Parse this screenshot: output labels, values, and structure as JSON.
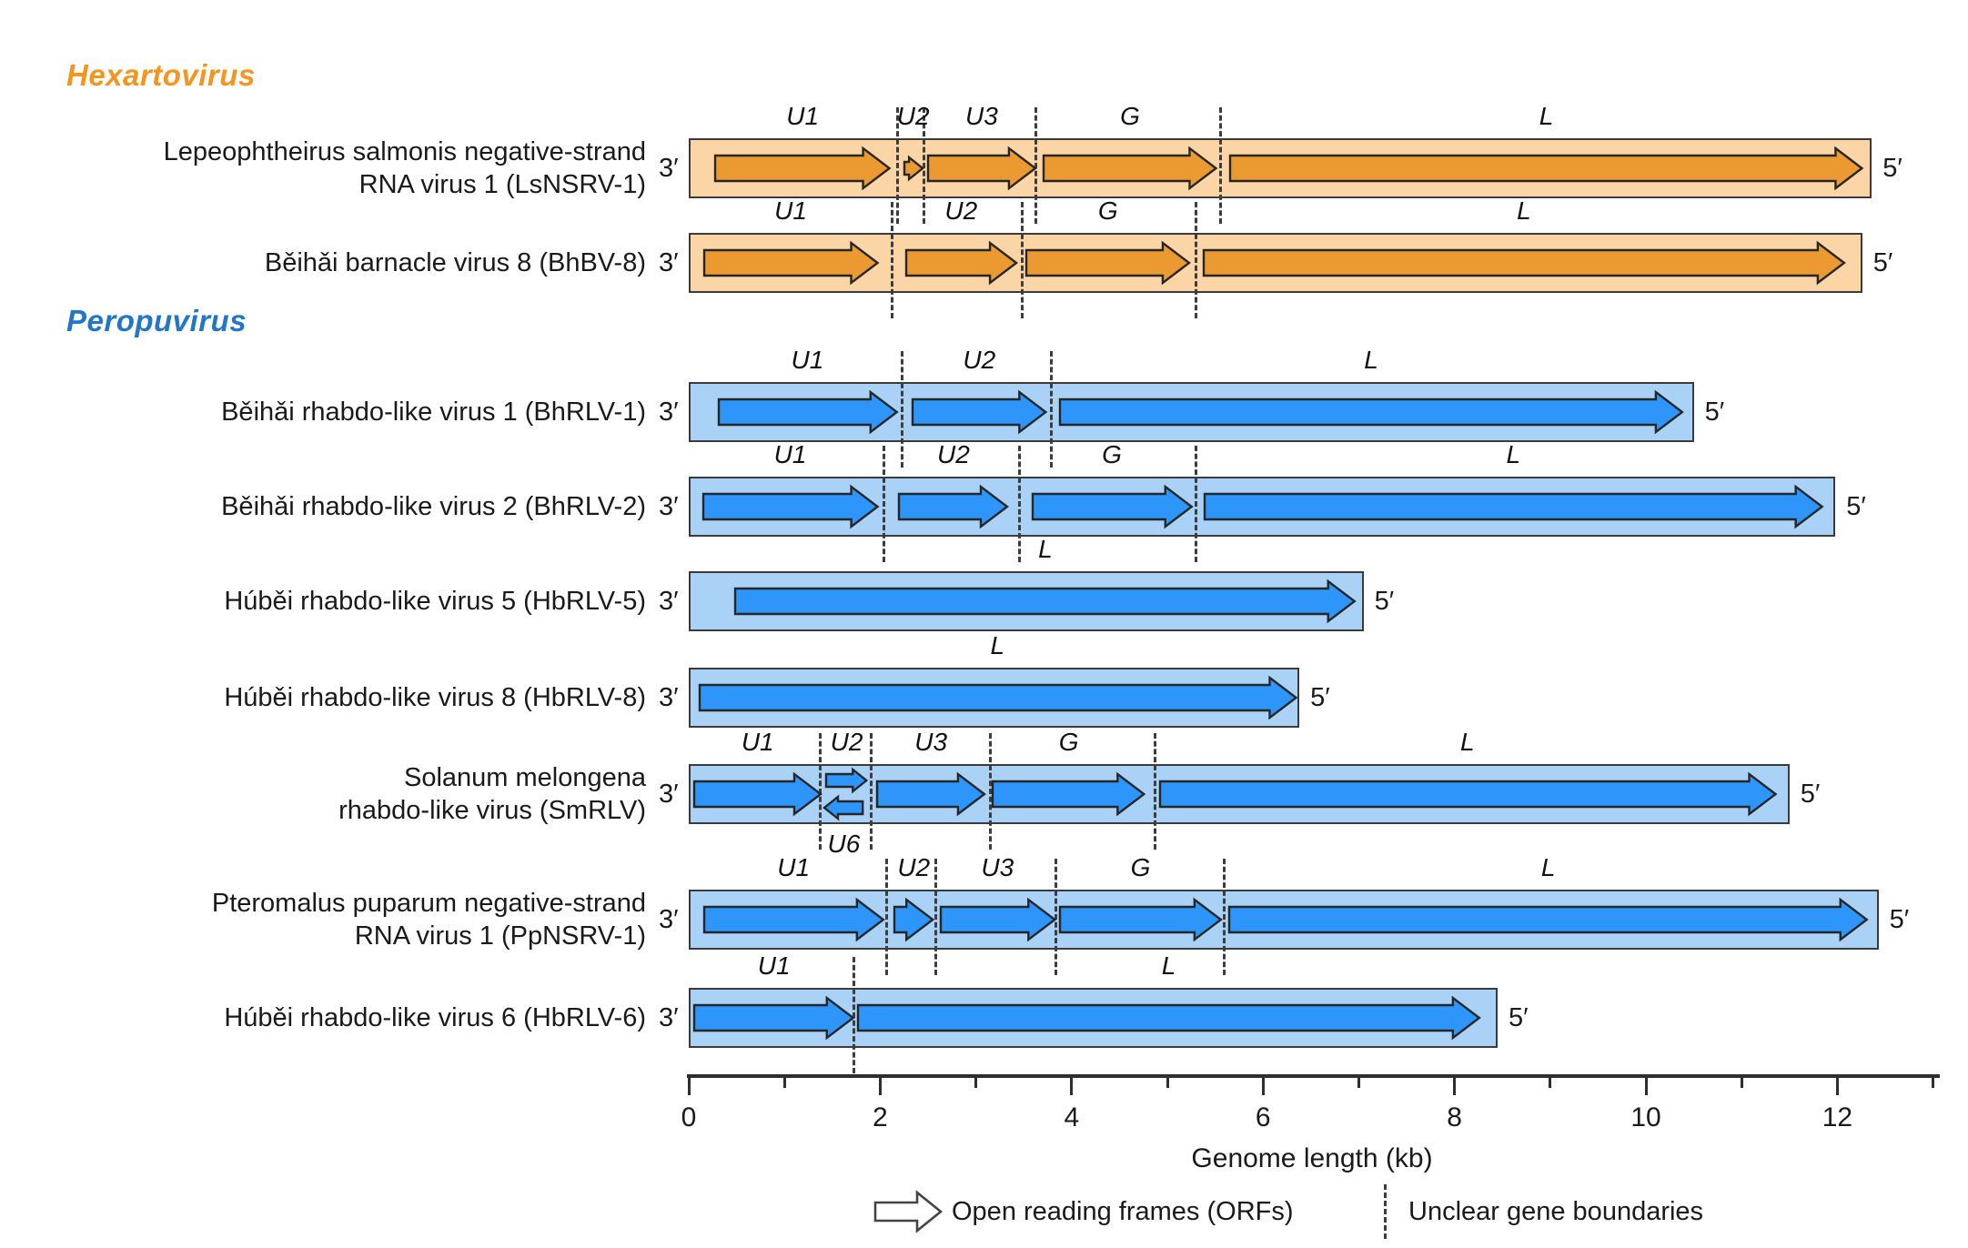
{
  "groups": [
    {
      "id": "hexartovirus",
      "label": "Hexartovirus",
      "header_color": "#F7941D",
      "band_color": "#FBD5A5",
      "arrow_color": "#EA9A31"
    },
    {
      "id": "peropuvirus",
      "label": "Peropuvirus",
      "header_color": "#2176C7",
      "band_color": "#A9D2F6",
      "arrow_color": "#2E96FA"
    }
  ],
  "prime_left": "3′",
  "prime_right": "5′",
  "rows": [
    {
      "id": "LsNSRV-1",
      "group": "hexartovirus",
      "name_lines": [
        "Lepeophtheirus salmonis negative-strand",
        "RNA virus 1 (LsNSRV-1)"
      ],
      "backbone_kb": 12.36,
      "orfs": [
        {
          "label": "U1",
          "start": 0.27,
          "end": 2.11,
          "size": "full",
          "lane": "center",
          "dir": "right"
        },
        {
          "label": "U2",
          "start": 2.24,
          "end": 2.45,
          "size": "small",
          "lane": "center",
          "dir": "right"
        },
        {
          "label": "U3",
          "start": 2.49,
          "end": 3.63,
          "size": "full",
          "lane": "center",
          "dir": "right"
        },
        {
          "label": "G",
          "start": 3.7,
          "end": 5.52,
          "size": "full",
          "lane": "center",
          "dir": "right"
        },
        {
          "label": "L",
          "start": 5.65,
          "end": 12.27,
          "size": "full",
          "lane": "center",
          "dir": "right"
        }
      ],
      "boundaries": [
        2.18,
        2.46,
        3.63,
        5.56
      ]
    },
    {
      "id": "BhBV-8",
      "group": "hexartovirus",
      "name_lines": [
        "Běihǎi barnacle virus 8 (BhBV-8)"
      ],
      "backbone_kb": 12.26,
      "orfs": [
        {
          "label": "U1",
          "start": 0.15,
          "end": 1.98,
          "size": "full",
          "lane": "center",
          "dir": "right"
        },
        {
          "label": "U2",
          "start": 2.26,
          "end": 3.43,
          "size": "full",
          "lane": "center",
          "dir": "right"
        },
        {
          "label": "G",
          "start": 3.52,
          "end": 5.24,
          "size": "full",
          "lane": "center",
          "dir": "right"
        },
        {
          "label": "L",
          "start": 5.37,
          "end": 12.08,
          "size": "full",
          "lane": "center",
          "dir": "right"
        }
      ],
      "boundaries": [
        2.12,
        3.48,
        5.3
      ]
    },
    {
      "id": "BhRLV-1",
      "group": "peropuvirus",
      "name_lines": [
        "Běihǎi rhabdo-like virus 1 (BhRLV-1)"
      ],
      "backbone_kb": 10.5,
      "orfs": [
        {
          "label": "U1",
          "start": 0.3,
          "end": 2.18,
          "size": "full",
          "lane": "center",
          "dir": "right"
        },
        {
          "label": "U2",
          "start": 2.33,
          "end": 3.74,
          "size": "full",
          "lane": "center",
          "dir": "right"
        },
        {
          "label": "L",
          "start": 3.87,
          "end": 10.39,
          "size": "full",
          "lane": "center",
          "dir": "right"
        }
      ],
      "boundaries": [
        2.23,
        3.79
      ]
    },
    {
      "id": "BhRLV-2",
      "group": "peropuvirus",
      "name_lines": [
        "Běihǎi rhabdo-like virus 2 (BhRLV-2)"
      ],
      "backbone_kb": 11.98,
      "orfs": [
        {
          "label": "U1",
          "start": 0.14,
          "end": 1.98,
          "size": "full",
          "lane": "center",
          "dir": "right"
        },
        {
          "label": "U2",
          "start": 2.19,
          "end": 3.34,
          "size": "full",
          "lane": "center",
          "dir": "right"
        },
        {
          "label": "G",
          "start": 3.58,
          "end": 5.26,
          "size": "full",
          "lane": "center",
          "dir": "right"
        },
        {
          "label": "L",
          "start": 5.38,
          "end": 11.85,
          "size": "full",
          "lane": "center",
          "dir": "right"
        }
      ],
      "boundaries": [
        2.04,
        3.46,
        5.3
      ]
    },
    {
      "id": "HbRLV-5",
      "group": "peropuvirus",
      "name_lines": [
        "Húběi rhabdo-like virus 5 (HbRLV-5)"
      ],
      "backbone_kb": 7.05,
      "orfs": [
        {
          "label": "L",
          "start": 0.48,
          "end": 6.97,
          "size": "full",
          "lane": "center",
          "dir": "right"
        }
      ],
      "boundaries": []
    },
    {
      "id": "HbRLV-8",
      "group": "peropuvirus",
      "name_lines": [
        "Húběi rhabdo-like virus 8 (HbRLV-8)"
      ],
      "backbone_kb": 6.38,
      "orfs": [
        {
          "label": "L",
          "start": 0.1,
          "end": 6.35,
          "size": "full",
          "lane": "center",
          "dir": "right"
        }
      ],
      "boundaries": []
    },
    {
      "id": "SmRLV",
      "group": "peropuvirus",
      "name_lines": [
        "Solanum melongena",
        "rhabdo-like virus (SmRLV)"
      ],
      "backbone_kb": 11.5,
      "orfs": [
        {
          "label": "U1",
          "start": 0.05,
          "end": 1.39,
          "size": "full",
          "lane": "center",
          "dir": "right"
        },
        {
          "label": "U2",
          "start": 1.43,
          "end": 1.87,
          "size": "small",
          "lane": "top",
          "dir": "right"
        },
        {
          "label": "U6",
          "start": 1.41,
          "end": 1.83,
          "size": "small",
          "lane": "bottom",
          "dir": "left",
          "label_pos": "below"
        },
        {
          "label": "U3",
          "start": 1.96,
          "end": 3.1,
          "size": "full",
          "lane": "center",
          "dir": "right"
        },
        {
          "label": "G",
          "start": 3.17,
          "end": 4.77,
          "size": "full",
          "lane": "center",
          "dir": "right"
        },
        {
          "label": "L",
          "start": 4.91,
          "end": 11.36,
          "size": "full",
          "lane": "center",
          "dir": "right"
        }
      ],
      "boundaries": [
        1.37,
        1.91,
        3.15,
        4.87
      ]
    },
    {
      "id": "PpNSRV-1",
      "group": "peropuvirus",
      "name_lines": [
        "Pteromalus puparum negative-strand",
        "RNA virus 1 (PpNSRV-1)"
      ],
      "backbone_kb": 12.43,
      "orfs": [
        {
          "label": "U1",
          "start": 0.15,
          "end": 2.04,
          "size": "full",
          "lane": "center",
          "dir": "right"
        },
        {
          "label": "U2",
          "start": 2.14,
          "end": 2.56,
          "size": "full",
          "lane": "center",
          "dir": "right"
        },
        {
          "label": "U3",
          "start": 2.62,
          "end": 3.83,
          "size": "full",
          "lane": "center",
          "dir": "right"
        },
        {
          "label": "G",
          "start": 3.87,
          "end": 5.57,
          "size": "full",
          "lane": "center",
          "dir": "right"
        },
        {
          "label": "L",
          "start": 5.64,
          "end": 12.32,
          "size": "full",
          "lane": "center",
          "dir": "right"
        }
      ],
      "boundaries": [
        2.07,
        2.58,
        3.84,
        5.59
      ]
    },
    {
      "id": "HbRLV-6",
      "group": "peropuvirus",
      "name_lines": [
        "Húběi rhabdo-like virus 6 (HbRLV-6)"
      ],
      "backbone_kb": 8.45,
      "orfs": [
        {
          "label": "U1",
          "start": 0.05,
          "end": 1.73,
          "size": "full",
          "lane": "center",
          "dir": "right"
        },
        {
          "label": "L",
          "start": 1.76,
          "end": 8.27,
          "size": "full",
          "lane": "center",
          "dir": "right"
        }
      ],
      "boundaries": [
        1.73
      ]
    }
  ],
  "axis": {
    "title": "Genome length (kb)",
    "major_ticks": [
      0,
      2,
      4,
      6,
      8,
      10,
      12
    ],
    "minor_ticks": [
      1,
      3,
      5,
      7,
      9,
      11,
      13
    ],
    "max_kb": 13.1
  },
  "legend": {
    "orf": "Open reading frames (ORFs)",
    "boundary": "Unclear gene boundaries"
  }
}
